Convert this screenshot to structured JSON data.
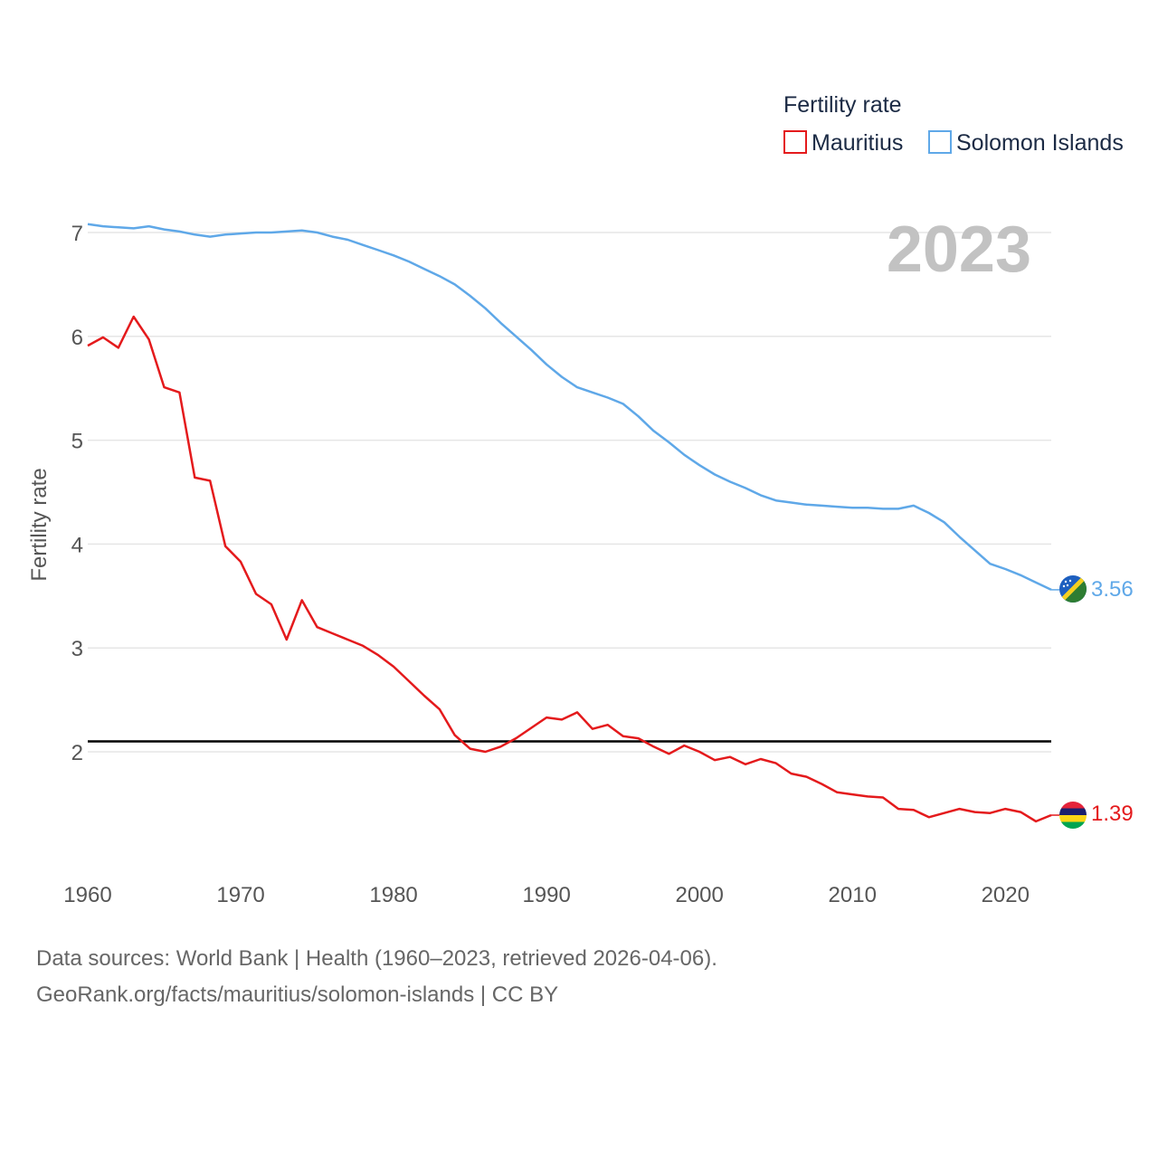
{
  "chart_data": {
    "type": "line",
    "title": "Fertility rate",
    "ylabel": "Fertility rate",
    "xlabel": "",
    "year_label": "2023",
    "xlim": [
      1960,
      2023
    ],
    "ylim": [
      1,
      7.5
    ],
    "yticks": [
      2,
      3,
      4,
      5,
      6,
      7
    ],
    "xticks": [
      1960,
      1970,
      1980,
      1990,
      2000,
      2010,
      2020
    ],
    "reference_line": 2.1,
    "legend": {
      "title": "Fertility rate",
      "position": "top-right"
    },
    "x": [
      1960,
      1961,
      1962,
      1963,
      1964,
      1965,
      1966,
      1967,
      1968,
      1969,
      1970,
      1971,
      1972,
      1973,
      1974,
      1975,
      1976,
      1977,
      1978,
      1979,
      1980,
      1981,
      1982,
      1983,
      1984,
      1985,
      1986,
      1987,
      1988,
      1989,
      1990,
      1991,
      1992,
      1993,
      1994,
      1995,
      1996,
      1997,
      1998,
      1999,
      2000,
      2001,
      2002,
      2003,
      2004,
      2005,
      2006,
      2007,
      2008,
      2009,
      2010,
      2011,
      2012,
      2013,
      2014,
      2015,
      2016,
      2017,
      2018,
      2019,
      2020,
      2021,
      2022,
      2023
    ],
    "series": [
      {
        "name": "Mauritius",
        "color": "#e41a1c",
        "end_label": "1.39",
        "values": [
          5.91,
          5.99,
          5.89,
          6.19,
          5.97,
          5.51,
          5.46,
          4.64,
          4.61,
          3.98,
          3.83,
          3.52,
          3.42,
          3.08,
          3.46,
          3.2,
          3.14,
          3.08,
          3.02,
          2.93,
          2.82,
          2.68,
          2.54,
          2.41,
          2.16,
          2.03,
          2.0,
          2.05,
          2.13,
          2.23,
          2.33,
          2.31,
          2.38,
          2.22,
          2.26,
          2.15,
          2.13,
          2.05,
          1.98,
          2.06,
          2.0,
          1.92,
          1.95,
          1.88,
          1.93,
          1.89,
          1.79,
          1.76,
          1.69,
          1.61,
          1.59,
          1.57,
          1.56,
          1.45,
          1.44,
          1.37,
          1.41,
          1.45,
          1.42,
          1.41,
          1.45,
          1.42,
          1.33,
          1.39
        ]
      },
      {
        "name": "Solomon Islands",
        "color": "#5fa8e8",
        "end_label": "3.56",
        "values": [
          7.08,
          7.06,
          7.05,
          7.04,
          7.06,
          7.03,
          7.01,
          6.98,
          6.96,
          6.98,
          6.99,
          7.0,
          7.0,
          7.01,
          7.02,
          7.0,
          6.96,
          6.93,
          6.88,
          6.83,
          6.78,
          6.72,
          6.65,
          6.58,
          6.5,
          6.39,
          6.27,
          6.13,
          6.0,
          5.87,
          5.73,
          5.61,
          5.51,
          5.46,
          5.41,
          5.35,
          5.23,
          5.09,
          4.98,
          4.86,
          4.76,
          4.67,
          4.6,
          4.54,
          4.47,
          4.42,
          4.4,
          4.38,
          4.37,
          4.36,
          4.35,
          4.35,
          4.34,
          4.34,
          4.37,
          4.3,
          4.21,
          4.07,
          3.94,
          3.81,
          3.76,
          3.7,
          3.63,
          3.56
        ]
      }
    ]
  },
  "footer": {
    "line1": "Data sources: World Bank | Health (1960–2023, retrieved 2026-04-06).",
    "line2": "GeoRank.org/facts/mauritius/solomon-islands | CC BY"
  }
}
